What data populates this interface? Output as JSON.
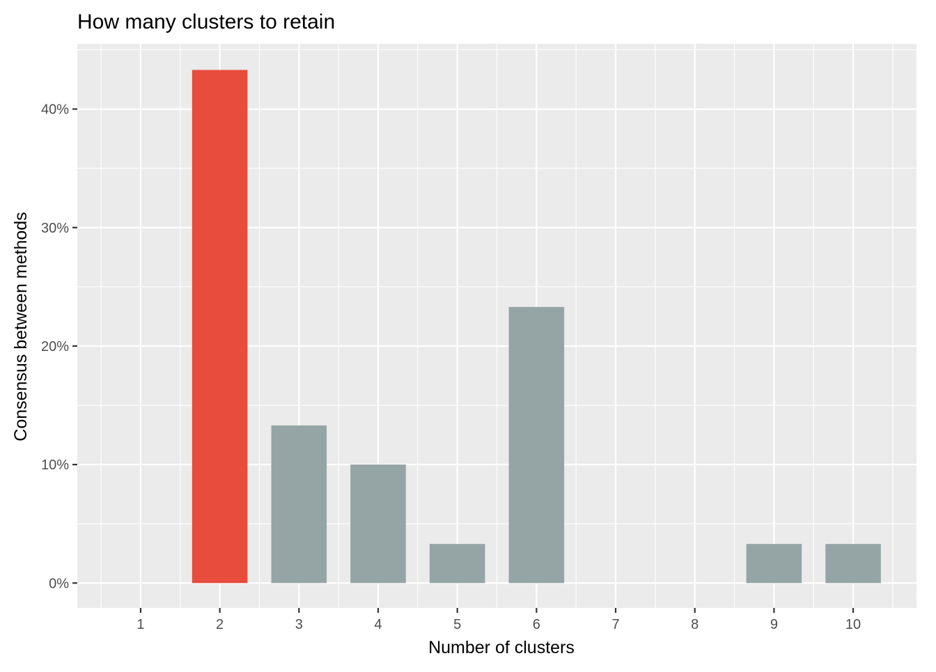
{
  "chart_data": {
    "type": "bar",
    "title": "How many clusters to retain",
    "xlabel": "Number of clusters",
    "ylabel": "Consensus between methods",
    "categories": [
      "1",
      "2",
      "3",
      "4",
      "5",
      "6",
      "7",
      "8",
      "9",
      "10"
    ],
    "values": [
      0,
      43.3,
      13.3,
      10.0,
      3.3,
      23.3,
      0,
      0,
      3.3,
      3.3
    ],
    "highlight_category": "2",
    "ylim": [
      -2.1,
      45.5
    ],
    "yticks": [
      0,
      10,
      20,
      30,
      40
    ],
    "ytick_labels": [
      "0%",
      "10%",
      "20%",
      "30%",
      "40%"
    ],
    "grid": true,
    "legend": "none",
    "colors": {
      "highlight": "#e74c3c",
      "default": "#95a5a6",
      "panel": "#ebebeb",
      "grid": "#ffffff",
      "tick_text": "#4d4d4d",
      "title_text": "#000000"
    }
  }
}
